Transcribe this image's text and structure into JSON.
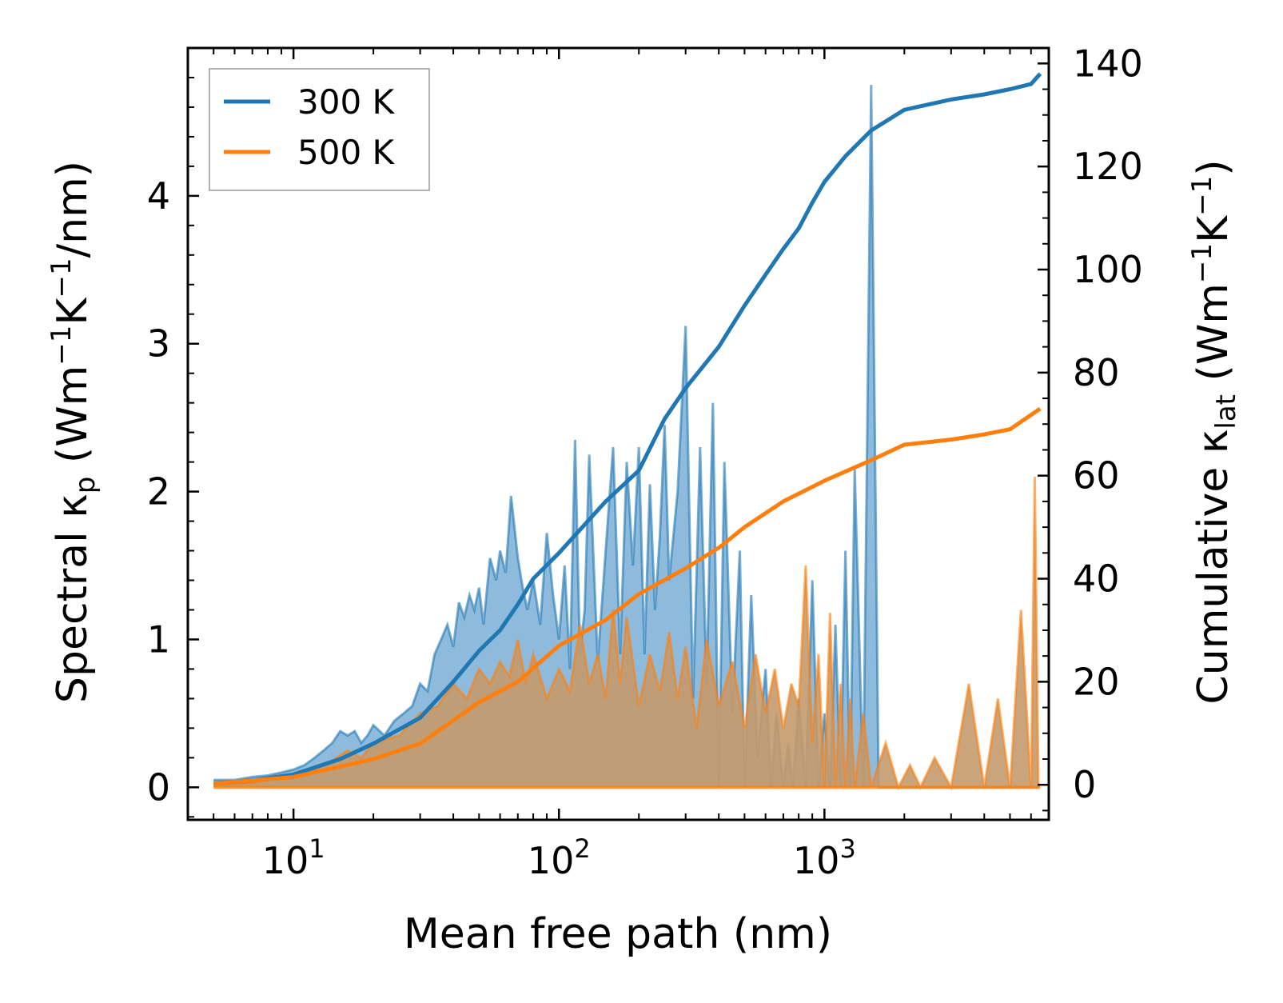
{
  "chart_data": {
    "type": "line",
    "x_scale": "log",
    "xlabel": "Mean free path (nm)",
    "xlim": [
      4,
      7000
    ],
    "x_ticks": [
      {
        "value": 10,
        "base": "10",
        "exp": "1"
      },
      {
        "value": 100,
        "base": "10",
        "exp": "2"
      },
      {
        "value": 1000,
        "base": "10",
        "exp": "3"
      }
    ],
    "ylabel_left": {
      "text": "Spectral κ",
      "sub": "p",
      "unit_open": " (Wm",
      "sup1": "−1",
      "mid": "K",
      "sup2": "−1",
      "unit_close": "/nm)"
    },
    "ylabel_right": {
      "text": "Cumulative κ",
      "sub": "lat",
      "unit_open": " (Wm",
      "sup1": "−1",
      "mid": "K",
      "sup2": "−1",
      "unit_close": ")"
    },
    "ylim_left": [
      -0.22,
      5.0
    ],
    "ylim_right": [
      -6.8,
      143
    ],
    "yticks_left": [
      "0",
      "1",
      "2",
      "3",
      "4"
    ],
    "yticks_right": [
      "0",
      "20",
      "40",
      "60",
      "80",
      "100",
      "120",
      "140"
    ],
    "legend": {
      "position": "top-left",
      "entries": [
        "300 K",
        "500 K"
      ]
    },
    "colors": {
      "series_300": "#1f77b4",
      "series_500": "#ff7f0e",
      "fill_300": "#7aafd6",
      "fill_500": "#c49a6c"
    },
    "series": [
      {
        "name": "300 K",
        "axis": "right",
        "kind": "cumulative",
        "x": [
          5,
          7,
          10,
          15,
          20,
          30,
          40,
          50,
          60,
          70,
          80,
          100,
          150,
          200,
          250,
          300,
          400,
          500,
          600,
          700,
          800,
          900,
          1000,
          1200,
          1500,
          2000,
          3000,
          4000,
          5000,
          6000,
          6500
        ],
        "values": [
          0.2,
          0.8,
          2,
          5,
          8,
          13,
          20,
          26,
          30,
          35,
          40,
          45,
          55,
          61,
          71,
          77,
          85,
          93,
          99,
          104,
          108,
          113,
          117,
          122,
          127,
          131,
          133,
          134,
          135,
          136,
          138
        ]
      },
      {
        "name": "500 K",
        "axis": "right",
        "kind": "cumulative",
        "x": [
          5,
          10,
          20,
          30,
          50,
          70,
          100,
          150,
          200,
          300,
          400,
          500,
          700,
          1000,
          1500,
          2000,
          3000,
          4000,
          5000,
          6500
        ],
        "values": [
          0.2,
          1.5,
          5,
          8,
          16,
          20,
          27,
          32,
          37,
          42,
          46,
          50,
          55,
          59,
          63,
          66,
          67,
          68,
          69,
          73
        ]
      },
      {
        "name": "300 K spectral",
        "axis": "left",
        "kind": "spectral",
        "x": [
          5,
          6,
          7,
          8,
          9,
          10,
          11,
          12,
          13,
          14,
          15,
          16,
          17,
          18,
          19,
          20,
          22,
          24,
          26,
          28,
          30,
          32,
          34,
          36,
          38,
          40,
          42,
          44,
          46,
          48,
          50,
          52,
          55,
          58,
          60,
          63,
          66,
          70,
          73,
          76,
          80,
          85,
          90,
          95,
          100,
          105,
          110,
          115,
          120,
          125,
          130,
          140,
          150,
          160,
          170,
          180,
          190,
          200,
          210,
          220,
          230,
          240,
          250,
          260,
          280,
          300,
          320,
          340,
          360,
          380,
          400,
          420,
          450,
          480,
          500,
          530,
          560,
          600,
          630,
          660,
          700,
          730,
          760,
          800,
          850,
          900,
          950,
          1000,
          1050,
          1100,
          1150,
          1200,
          1250,
          1300,
          1400,
          1500,
          1600,
          1700,
          1800,
          1900,
          2000,
          2100,
          2200,
          2400,
          2600,
          2800,
          3000,
          3200,
          3400,
          3600,
          3800,
          4000,
          4200,
          4500,
          4800,
          5000,
          5300,
          5600,
          6000,
          6200,
          6400
        ],
        "values": [
          0.05,
          0.05,
          0.07,
          0.08,
          0.1,
          0.12,
          0.15,
          0.2,
          0.25,
          0.3,
          0.38,
          0.35,
          0.38,
          0.3,
          0.35,
          0.42,
          0.35,
          0.45,
          0.5,
          0.55,
          0.7,
          0.65,
          0.9,
          1.0,
          1.1,
          0.95,
          1.25,
          1.15,
          1.3,
          1.2,
          1.35,
          1.1,
          1.55,
          1.4,
          1.6,
          1.45,
          1.97,
          1.55,
          1.35,
          1.2,
          1.4,
          1.1,
          1.72,
          1.3,
          1.0,
          1.5,
          0.8,
          2.35,
          0.9,
          1.2,
          2.25,
          0.85,
          1.6,
          2.3,
          0.9,
          2.2,
          1.5,
          2.3,
          0.9,
          2.05,
          1.2,
          1.7,
          2.45,
          1.4,
          2.0,
          3.12,
          0.6,
          2.3,
          0.7,
          2.6,
          0.0,
          2.2,
          0.5,
          1.6,
          0.0,
          1.3,
          0.2,
          0.8,
          0.0,
          0.5,
          0.0,
          0.3,
          0.0,
          0.6,
          0.0,
          1.4,
          0.0,
          0.5,
          0.0,
          1.1,
          0.0,
          1.6,
          0.0,
          2.15,
          0.0,
          4.75,
          0.0,
          0.0,
          0.0,
          0.0,
          0.0,
          0.0,
          0.0,
          0.0,
          0.0,
          0.0,
          0.0,
          0.0,
          0.0,
          0.0,
          0.0,
          0.0,
          0.0,
          0.0,
          0.0,
          0.0,
          0.0,
          0.0,
          0.0,
          0.0,
          0.0
        ]
      },
      {
        "name": "500 K spectral",
        "axis": "left",
        "kind": "spectral",
        "x": [
          5,
          7,
          10,
          12,
          14,
          16,
          18,
          20,
          25,
          30,
          35,
          40,
          45,
          50,
          55,
          60,
          65,
          70,
          75,
          80,
          90,
          100,
          110,
          120,
          130,
          140,
          150,
          160,
          170,
          180,
          200,
          220,
          240,
          260,
          280,
          300,
          330,
          360,
          400,
          450,
          500,
          550,
          600,
          650,
          700,
          750,
          800,
          850,
          900,
          950,
          1000,
          1050,
          1100,
          1150,
          1200,
          1250,
          1300,
          1400,
          1500,
          1700,
          1900,
          2100,
          2300,
          2600,
          3000,
          3500,
          4000,
          4500,
          5000,
          5500,
          6000,
          6200,
          6400
        ],
        "values": [
          0.02,
          0.03,
          0.08,
          0.12,
          0.18,
          0.25,
          0.2,
          0.3,
          0.35,
          0.5,
          0.55,
          0.7,
          0.6,
          0.8,
          0.7,
          0.85,
          0.75,
          1.0,
          0.7,
          0.9,
          0.6,
          0.8,
          0.65,
          1.1,
          0.7,
          0.9,
          0.6,
          1.2,
          0.7,
          1.15,
          0.55,
          0.9,
          0.65,
          1.05,
          0.6,
          0.95,
          0.4,
          1.0,
          0.55,
          0.85,
          0.4,
          0.9,
          0.5,
          0.8,
          0.4,
          0.7,
          0.55,
          1.5,
          0.3,
          0.9,
          0.0,
          1.18,
          0.0,
          0.7,
          0.0,
          0.6,
          0.0,
          0.5,
          0.0,
          0.3,
          0.0,
          0.15,
          0.0,
          0.2,
          0.0,
          0.7,
          0.0,
          0.6,
          0.0,
          1.2,
          0.0,
          2.1,
          0.0
        ]
      }
    ]
  }
}
